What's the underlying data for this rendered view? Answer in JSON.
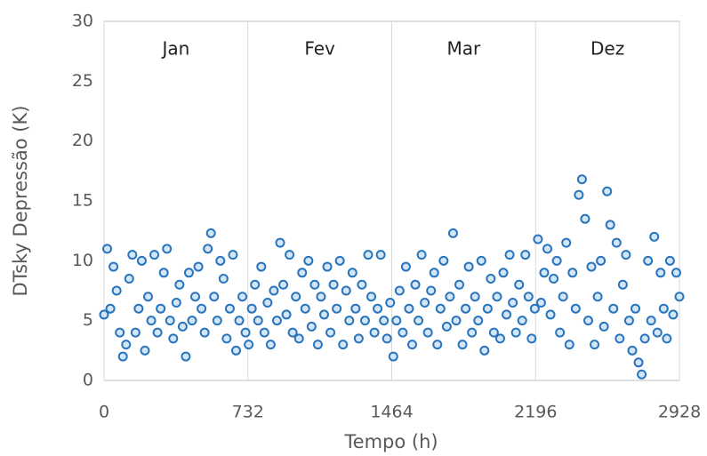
{
  "chart_data": {
    "type": "scatter",
    "xlabel": "Tempo (h)",
    "ylabel": "DTsky Depressão (K)",
    "annotations": [
      "Jan",
      "Fev",
      "Mar",
      "Dez"
    ],
    "color": "#2874bd",
    "fill": "#d4e6f6",
    "xlim": [
      0,
      2928
    ],
    "xticks": [
      0,
      732,
      1464,
      2196,
      2928
    ],
    "ylim": [
      0,
      30
    ],
    "yticks": [
      0,
      5,
      10,
      15,
      20,
      25,
      30
    ],
    "grid_x": true,
    "grid_y": false,
    "x": [
      0,
      16,
      32,
      48,
      64,
      80,
      96,
      112,
      128,
      144,
      160,
      176,
      192,
      208,
      224,
      240,
      256,
      272,
      288,
      304,
      320,
      336,
      352,
      368,
      384,
      400,
      416,
      432,
      448,
      464,
      480,
      496,
      512,
      528,
      544,
      560,
      576,
      592,
      608,
      624,
      640,
      656,
      672,
      688,
      704,
      720,
      736,
      752,
      768,
      784,
      800,
      816,
      832,
      848,
      864,
      880,
      896,
      912,
      928,
      944,
      960,
      976,
      992,
      1008,
      1024,
      1040,
      1056,
      1072,
      1088,
      1104,
      1120,
      1136,
      1152,
      1168,
      1184,
      1200,
      1216,
      1232,
      1248,
      1264,
      1280,
      1296,
      1312,
      1328,
      1344,
      1360,
      1376,
      1392,
      1408,
      1424,
      1440,
      1456,
      1472,
      1488,
      1504,
      1520,
      1536,
      1552,
      1568,
      1584,
      1600,
      1616,
      1632,
      1648,
      1664,
      1680,
      1696,
      1712,
      1728,
      1744,
      1760,
      1776,
      1792,
      1808,
      1824,
      1840,
      1856,
      1872,
      1888,
      1904,
      1920,
      1936,
      1952,
      1968,
      1984,
      2000,
      2016,
      2032,
      2048,
      2064,
      2080,
      2096,
      2112,
      2128,
      2144,
      2160,
      2176,
      2192,
      2208,
      2224,
      2240,
      2256,
      2272,
      2288,
      2304,
      2320,
      2336,
      2352,
      2368,
      2384,
      2400,
      2416,
      2432,
      2448,
      2464,
      2480,
      2496,
      2512,
      2528,
      2544,
      2560,
      2576,
      2592,
      2608,
      2624,
      2640,
      2656,
      2672,
      2688,
      2704,
      2720,
      2736,
      2752,
      2768,
      2784,
      2800,
      2816,
      2832,
      2848,
      2864,
      2880,
      2896,
      2912,
      2928
    ],
    "values": [
      5.5,
      11,
      6,
      9.5,
      7.5,
      4,
      2,
      3,
      8.5,
      10.5,
      4,
      6,
      10,
      2.5,
      7,
      5,
      10.5,
      4,
      6,
      9,
      11,
      5,
      3.5,
      6.5,
      8,
      4.5,
      2,
      9,
      5,
      7,
      9.5,
      6,
      4,
      11,
      12.3,
      7,
      5,
      10,
      8.5,
      3.5,
      6,
      10.5,
      2.5,
      5,
      7,
      4,
      3,
      6,
      8,
      5,
      9.5,
      4,
      6.5,
      3,
      7.5,
      5,
      11.5,
      8,
      5.5,
      10.5,
      4,
      7,
      3.5,
      9,
      6,
      10,
      4.5,
      8,
      3,
      7,
      5.5,
      9.5,
      4,
      8,
      6,
      10,
      3,
      7.5,
      5,
      9,
      6,
      3.5,
      8,
      5,
      10.5,
      7,
      4,
      6,
      10.5,
      5,
      3.5,
      6.5,
      2,
      5,
      7.5,
      4,
      9.5,
      6,
      3,
      8,
      5,
      10.5,
      6.5,
      4,
      7.5,
      9,
      3,
      6,
      10,
      4.5,
      7,
      12.3,
      5,
      8,
      3,
      6,
      9.5,
      4,
      7,
      5,
      10,
      2.5,
      6,
      8.5,
      4,
      7,
      3.5,
      9,
      5.5,
      10.5,
      6.5,
      4,
      8,
      5,
      10.5,
      7,
      3.5,
      6,
      11.8,
      6.5,
      9,
      11,
      5.5,
      8.5,
      10,
      4,
      7,
      11.5,
      3,
      9,
      6,
      15.5,
      16.8,
      13.5,
      5,
      9.5,
      3,
      7,
      10,
      4.5,
      15.8,
      13,
      6,
      11.5,
      3.5,
      8,
      10.5,
      5,
      2.5,
      6,
      1.5,
      0.5,
      3.5,
      10,
      5,
      12,
      4,
      9,
      6,
      3.5,
      10,
      5.5,
      9,
      7
    ]
  }
}
